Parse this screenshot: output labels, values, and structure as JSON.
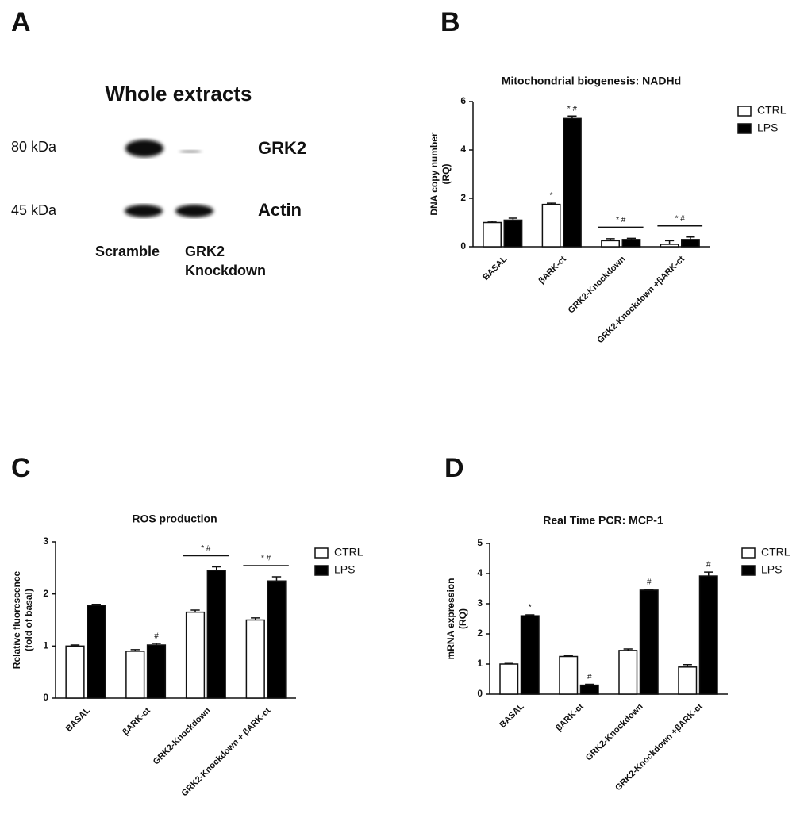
{
  "blot": {
    "panel_label": "A",
    "title": "Whole extracts",
    "markers": [
      "80 kDa",
      "45 kDa"
    ],
    "proteins": [
      "GRK2",
      "Actin"
    ],
    "lanes": [
      [
        "Scramble"
      ],
      [
        "GRK2",
        "Knockdown"
      ]
    ]
  },
  "chart_data": [
    {
      "type": "bar",
      "panel_label": "B",
      "title": "Mitochondrial biogenesis: NADHd",
      "ylabel": [
        "DNA copy number",
        "(RQ)"
      ],
      "categories": [
        "BASAL",
        "βARK-ct",
        "GRK2-Knockdown",
        "GRK2-Knockdown +βARK-ct"
      ],
      "series": [
        {
          "name": "CTRL",
          "color": "#ffffff",
          "values": [
            1.0,
            1.75,
            0.25,
            0.1
          ],
          "errors": [
            0.05,
            0.05,
            0.08,
            0.15
          ],
          "significance": [
            null,
            "*",
            null,
            null
          ]
        },
        {
          "name": "LPS",
          "color": "#000000",
          "values": [
            1.1,
            5.3,
            0.3,
            0.3
          ],
          "errors": [
            0.08,
            0.1,
            0.05,
            0.1
          ],
          "significance": [
            null,
            "* #",
            null,
            null
          ]
        }
      ],
      "group_significance": [
        null,
        null,
        "* #",
        "* #"
      ],
      "ylim": [
        0,
        6
      ],
      "yticks": [
        0,
        2,
        4,
        6
      ]
    },
    {
      "type": "bar",
      "panel_label": "C",
      "title": "ROS production",
      "ylabel": [
        "Relative fluorescence",
        "(fold of basal)"
      ],
      "categories": [
        "BASAL",
        "βARK-ct",
        "GRK2-Knockdown",
        "GRK2-Knockdown + βARK-ct"
      ],
      "series": [
        {
          "name": "CTRL",
          "color": "#ffffff",
          "values": [
            1.0,
            0.9,
            1.65,
            1.5
          ],
          "errors": [
            0.02,
            0.03,
            0.04,
            0.04
          ],
          "significance": [
            null,
            null,
            null,
            null
          ]
        },
        {
          "name": "LPS",
          "color": "#000000",
          "values": [
            1.78,
            1.02,
            2.45,
            2.25
          ],
          "errors": [
            0.02,
            0.03,
            0.07,
            0.08
          ],
          "significance": [
            null,
            "#",
            null,
            null
          ]
        }
      ],
      "group_significance": [
        null,
        null,
        "* #",
        "* #"
      ],
      "ylim": [
        0,
        3
      ],
      "yticks": [
        0,
        1,
        2,
        3
      ]
    },
    {
      "type": "bar",
      "panel_label": "D",
      "title": "Real Time PCR: MCP-1",
      "ylabel": [
        "mRNA expression",
        "(RQ)"
      ],
      "categories": [
        "BASAL",
        "βARK-ct",
        "GRK2-Knockdown",
        "GRK2-Knockdown +βARK-ct"
      ],
      "series": [
        {
          "name": "CTRL",
          "color": "#ffffff",
          "values": [
            1.0,
            1.25,
            1.45,
            0.9
          ],
          "errors": [
            0.02,
            0.02,
            0.05,
            0.08
          ],
          "significance": [
            null,
            null,
            null,
            null
          ]
        },
        {
          "name": "LPS",
          "color": "#000000",
          "values": [
            2.6,
            0.3,
            3.45,
            3.92
          ],
          "errors": [
            0.03,
            0.03,
            0.03,
            0.13
          ],
          "significance": [
            "*",
            "#",
            "#",
            "#"
          ]
        }
      ],
      "group_significance": [
        null,
        null,
        null,
        null
      ],
      "ylim": [
        0,
        5
      ],
      "yticks": [
        0,
        1,
        2,
        3,
        4,
        5
      ]
    }
  ]
}
